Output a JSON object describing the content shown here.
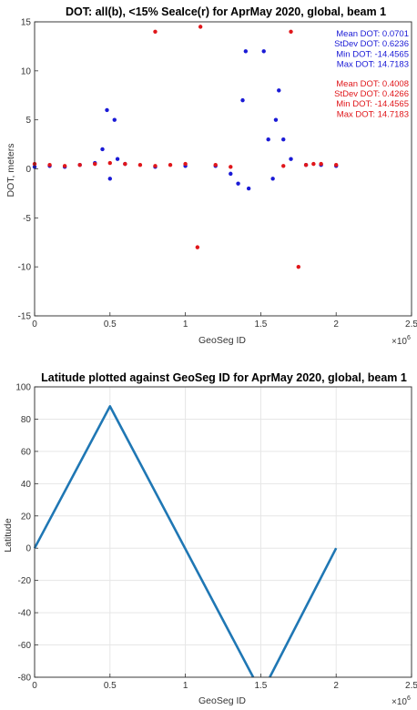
{
  "chart_data": [
    {
      "type": "scatter",
      "title": "DOT: all(b), <15% SeaIce(r) for AprMay 2020, global, beam 1",
      "xlabel": "GeoSeg ID",
      "ylabel": "DOT, meters",
      "x_multiplier": "×10",
      "x_multiplier_exp": "6",
      "xlim": [
        0,
        2.5
      ],
      "ylim": [
        -15,
        15
      ],
      "xticks": [
        "0",
        "0.5",
        "1",
        "1.5",
        "2",
        "2.5"
      ],
      "yticks": [
        "-15",
        "-10",
        "-5",
        "0",
        "5",
        "10",
        "15"
      ],
      "grid": false,
      "series": [
        {
          "color": "#1a1ad6",
          "stats": [
            "Mean DOT: 0.0701",
            "StDev DOT: 0.6236",
            "Min DOT: -14.4565",
            "Max DOT: 14.7183"
          ],
          "x": [
            0.0,
            0.1,
            0.2,
            0.3,
            0.4,
            0.45,
            0.48,
            0.5,
            0.53,
            0.55,
            0.6,
            0.8,
            1.0,
            1.2,
            1.3,
            1.35,
            1.38,
            1.4,
            1.42,
            1.52,
            1.55,
            1.58,
            1.6,
            1.62,
            1.65,
            1.7,
            1.8,
            1.9,
            2.0
          ],
          "y": [
            0.2,
            0.3,
            0.2,
            0.4,
            0.6,
            2.0,
            6.0,
            -1.0,
            5.0,
            1.0,
            0.5,
            0.2,
            0.3,
            0.3,
            -0.5,
            -1.5,
            7.0,
            12.0,
            -2.0,
            12.0,
            3.0,
            -1.0,
            5.0,
            8.0,
            3.0,
            1.0,
            0.4,
            0.4,
            0.3
          ]
        },
        {
          "color": "#e0161a",
          "stats": [
            "Mean DOT: 0.4008",
            "StDev DOT: 0.4266",
            "Min DOT: -14.4565",
            "Max DOT: 14.7183"
          ],
          "x": [
            0.0,
            0.1,
            0.2,
            0.3,
            0.4,
            0.5,
            0.6,
            0.7,
            0.8,
            0.8,
            0.9,
            1.0,
            1.08,
            1.1,
            1.2,
            1.3,
            1.65,
            1.7,
            1.75,
            1.8,
            1.85,
            1.9,
            2.0
          ],
          "y": [
            0.5,
            0.4,
            0.3,
            0.4,
            0.5,
            0.6,
            0.5,
            0.4,
            14.0,
            0.3,
            0.4,
            0.5,
            -8.0,
            14.5,
            0.4,
            0.2,
            0.3,
            14.0,
            -10.0,
            0.4,
            0.5,
            0.5,
            0.4
          ]
        }
      ]
    },
    {
      "type": "line",
      "title": "Latitude plotted against GeoSeg ID for AprMay 2020, global, beam 1",
      "xlabel": "GeoSeg ID",
      "ylabel": "Latitude",
      "x_multiplier": "×10",
      "x_multiplier_exp": "6",
      "xlim": [
        0,
        2.5
      ],
      "ylim": [
        -80,
        100
      ],
      "xticks": [
        "0",
        "0.5",
        "1",
        "1.5",
        "2",
        "2.5"
      ],
      "yticks": [
        "-80",
        "-60",
        "-40",
        "-20",
        "0",
        "20",
        "40",
        "60",
        "80",
        "100"
      ],
      "grid": true,
      "series": [
        {
          "color": "#1f77b4",
          "segments": [
            {
              "x": [
                0.0,
                0.5,
                1.45
              ],
              "y": [
                0.0,
                88.0,
                -80.0
              ]
            },
            {
              "x": [
                1.56,
                2.0
              ],
              "y": [
                -80.0,
                0.0
              ]
            }
          ]
        }
      ]
    }
  ]
}
